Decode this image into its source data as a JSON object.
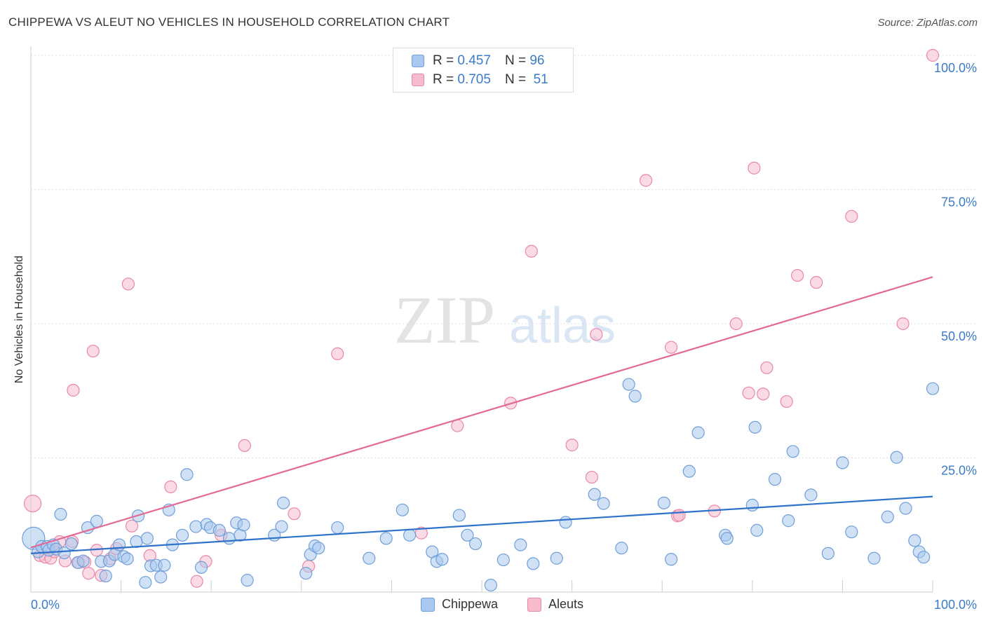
{
  "title": "CHIPPEWA VS ALEUT NO VEHICLES IN HOUSEHOLD CORRELATION CHART",
  "source": "Source: ZipAtlas.com",
  "legend": {
    "rows": [
      {
        "r_label": "R =",
        "r_value": "0.457",
        "n_label": "N =",
        "n_value": "96"
      },
      {
        "r_label": "R =",
        "r_value": "0.705",
        "n_label": "N =",
        "n_value": "51"
      }
    ]
  },
  "bottom_legend": [
    "Chippewa",
    "Aleuts"
  ],
  "colors": {
    "chippewa_fill": "#a9c8ef",
    "chippewa_stroke": "#6f9fd8",
    "chippewa_line": "#2f72c9",
    "aleuts_fill": "#f6bccd",
    "aleuts_stroke": "#e888a6",
    "aleuts_line": "#e26a94",
    "tick_label": "#3a7cc7",
    "grid": "#dddddd"
  },
  "chart_data": {
    "type": "scatter",
    "title": "CHIPPEWA VS ALEUT NO VEHICLES IN HOUSEHOLD CORRELATION CHART",
    "xlabel": "",
    "ylabel": "No Vehicles in Household",
    "xlim": [
      0,
      100
    ],
    "ylim": [
      0,
      100
    ],
    "x_tick_labels": [
      "0.0%",
      "100.0%"
    ],
    "y_ticks": [
      25,
      50,
      75,
      100
    ],
    "y_tick_labels": [
      "25.0%",
      "50.0%",
      "75.0%",
      "100.0%"
    ],
    "watermark": {
      "zip": "ZIP",
      "atlas": "atlas"
    },
    "series": [
      {
        "name": "Chippewa",
        "trend": {
          "x": [
            0,
            100
          ],
          "y": [
            7.2,
            17.8
          ]
        },
        "points": [
          [
            0.3,
            10.0
          ],
          [
            0.8,
            7.5
          ],
          [
            1.2,
            8.5
          ],
          [
            1.8,
            8.5
          ],
          [
            2.0,
            7.8
          ],
          [
            2.5,
            8.8
          ],
          [
            2.8,
            8.0
          ],
          [
            3.3,
            14.5
          ],
          [
            3.7,
            7.3
          ],
          [
            4.5,
            9.0
          ],
          [
            5.2,
            5.5
          ],
          [
            5.8,
            5.8
          ],
          [
            6.3,
            12.0
          ],
          [
            7.3,
            13.2
          ],
          [
            7.8,
            5.7
          ],
          [
            8.3,
            3.0
          ],
          [
            8.7,
            5.8
          ],
          [
            9.3,
            7.0
          ],
          [
            9.8,
            8.8
          ],
          [
            10.3,
            6.6
          ],
          [
            10.7,
            6.2
          ],
          [
            11.7,
            9.4
          ],
          [
            11.9,
            14.2
          ],
          [
            12.7,
            1.8
          ],
          [
            12.9,
            10.0
          ],
          [
            13.3,
            4.9
          ],
          [
            13.9,
            5.0
          ],
          [
            14.4,
            2.8
          ],
          [
            14.8,
            5.0
          ],
          [
            15.3,
            15.3
          ],
          [
            15.7,
            8.8
          ],
          [
            16.8,
            10.6
          ],
          [
            17.3,
            21.9
          ],
          [
            18.3,
            12.2
          ],
          [
            18.9,
            4.6
          ],
          [
            19.5,
            12.6
          ],
          [
            19.9,
            12.0
          ],
          [
            20.9,
            11.5
          ],
          [
            22.0,
            10.0
          ],
          [
            22.8,
            12.9
          ],
          [
            23.2,
            10.6
          ],
          [
            23.6,
            12.5
          ],
          [
            24.0,
            2.2
          ],
          [
            27.0,
            10.6
          ],
          [
            27.8,
            12.2
          ],
          [
            28.0,
            16.6
          ],
          [
            30.5,
            3.5
          ],
          [
            31.0,
            7.0
          ],
          [
            31.5,
            8.6
          ],
          [
            31.9,
            8.2
          ],
          [
            34.0,
            12.0
          ],
          [
            37.5,
            6.3
          ],
          [
            39.4,
            10.0
          ],
          [
            41.2,
            15.3
          ],
          [
            42.0,
            10.6
          ],
          [
            44.5,
            7.5
          ],
          [
            45.0,
            5.7
          ],
          [
            45.6,
            6.1
          ],
          [
            47.5,
            14.3
          ],
          [
            48.4,
            10.6
          ],
          [
            49.3,
            9.0
          ],
          [
            51.0,
            1.3
          ],
          [
            52.4,
            6.0
          ],
          [
            54.3,
            8.8
          ],
          [
            55.7,
            5.3
          ],
          [
            58.3,
            6.3
          ],
          [
            59.3,
            13.0
          ],
          [
            62.5,
            18.2
          ],
          [
            63.5,
            16.5
          ],
          [
            65.5,
            8.2
          ],
          [
            66.3,
            38.7
          ],
          [
            67.0,
            36.5
          ],
          [
            70.2,
            16.6
          ],
          [
            71.0,
            6.1
          ],
          [
            73.0,
            22.5
          ],
          [
            74.0,
            29.7
          ],
          [
            77.0,
            10.6
          ],
          [
            77.2,
            10.0
          ],
          [
            80.0,
            16.2
          ],
          [
            80.3,
            30.7
          ],
          [
            80.5,
            11.5
          ],
          [
            82.5,
            21.0
          ],
          [
            84.0,
            13.3
          ],
          [
            84.5,
            26.2
          ],
          [
            86.5,
            18.1
          ],
          [
            88.4,
            7.2
          ],
          [
            90.0,
            24.1
          ],
          [
            91.0,
            11.2
          ],
          [
            93.5,
            6.3
          ],
          [
            95.0,
            14.0
          ],
          [
            96.0,
            25.1
          ],
          [
            97.0,
            15.6
          ],
          [
            98.0,
            9.6
          ],
          [
            98.5,
            7.5
          ],
          [
            99.0,
            6.5
          ],
          [
            100.0,
            37.9
          ]
        ]
      },
      {
        "name": "Aleuts",
        "trend": {
          "x": [
            0,
            100
          ],
          "y": [
            8.3,
            58.7
          ]
        },
        "points": [
          [
            0.2,
            16.5
          ],
          [
            1.0,
            6.8
          ],
          [
            1.6,
            6.5
          ],
          [
            2.2,
            6.3
          ],
          [
            2.6,
            7.5
          ],
          [
            3.2,
            9.4
          ],
          [
            3.8,
            5.8
          ],
          [
            4.6,
            9.4
          ],
          [
            4.7,
            37.6
          ],
          [
            5.3,
            5.5
          ],
          [
            6.0,
            5.6
          ],
          [
            6.4,
            3.5
          ],
          [
            6.9,
            44.9
          ],
          [
            7.3,
            7.8
          ],
          [
            7.8,
            3.1
          ],
          [
            8.8,
            6.2
          ],
          [
            9.5,
            8.1
          ],
          [
            10.8,
            57.4
          ],
          [
            11.2,
            12.3
          ],
          [
            13.2,
            6.8
          ],
          [
            15.5,
            19.6
          ],
          [
            18.4,
            2.0
          ],
          [
            19.4,
            5.7
          ],
          [
            21.1,
            10.6
          ],
          [
            23.7,
            27.3
          ],
          [
            29.2,
            14.6
          ],
          [
            30.8,
            4.8
          ],
          [
            34.0,
            44.4
          ],
          [
            43.3,
            11.0
          ],
          [
            47.3,
            31.0
          ],
          [
            53.2,
            35.2
          ],
          [
            55.5,
            63.5
          ],
          [
            60.0,
            27.4
          ],
          [
            62.2,
            21.4
          ],
          [
            62.7,
            48.0
          ],
          [
            68.2,
            76.7
          ],
          [
            71.0,
            45.6
          ],
          [
            71.7,
            14.2
          ],
          [
            71.9,
            14.3
          ],
          [
            75.8,
            15.1
          ],
          [
            78.2,
            50.0
          ],
          [
            79.6,
            37.1
          ],
          [
            80.2,
            79.0
          ],
          [
            81.2,
            36.9
          ],
          [
            81.6,
            41.8
          ],
          [
            83.8,
            35.5
          ],
          [
            85.0,
            59.0
          ],
          [
            87.1,
            57.7
          ],
          [
            91.0,
            70.0
          ],
          [
            96.7,
            50.0
          ],
          [
            100.0,
            100.0
          ]
        ]
      }
    ]
  }
}
